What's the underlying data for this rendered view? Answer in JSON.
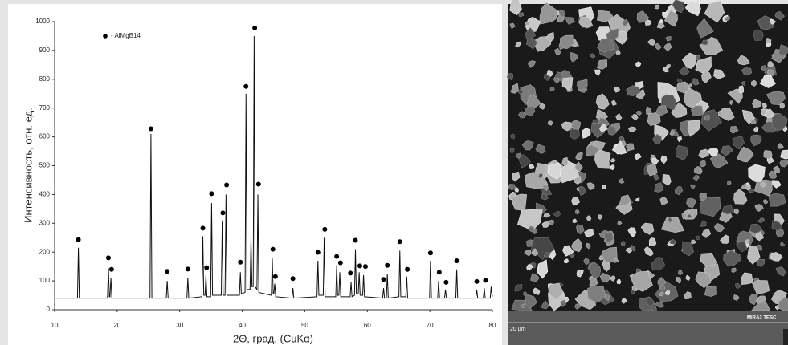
{
  "chart_data": {
    "type": "line",
    "x_label": "2Θ, град. (CuKα)",
    "y_label": "Интенсивность, отн. ед.",
    "xlim": [
      10,
      80
    ],
    "xticks": [
      10,
      20,
      30,
      40,
      50,
      60,
      70,
      80
    ],
    "ylim": [
      0,
      1000
    ],
    "yticks": [
      0,
      100,
      200,
      300,
      400,
      500,
      600,
      700,
      800,
      900,
      1000
    ],
    "series": [
      {
        "color": "#111111",
        "x": [
          10,
          13.65,
          13.8,
          13.95,
          18.45,
          18.6,
          18.75,
          18.85,
          19.0,
          19.15,
          25.25,
          25.4,
          25.55,
          27.85,
          28.0,
          28.15,
          31.15,
          31.3,
          31.45,
          33.55,
          33.7,
          33.85,
          34.05,
          34.2,
          34.35,
          34.95,
          35.1,
          35.25,
          36.65,
          36.8,
          36.95,
          37.25,
          37.4,
          37.55,
          39.55,
          39.7,
          39.85,
          40.45,
          40.6,
          40.75,
          41.25,
          41.4,
          41.55,
          41.75,
          41.9,
          42.05,
          42.35,
          42.5,
          42.65,
          44.65,
          44.8,
          44.95,
          45.05,
          45.2,
          45.35,
          47.95,
          48.1,
          48.25,
          51.95,
          52.1,
          52.25,
          52.95,
          53.1,
          53.25,
          54.95,
          55.1,
          55.25,
          55.45,
          55.6,
          55.75,
          57.25,
          57.4,
          57.55,
          57.95,
          58.1,
          58.25,
          58.55,
          58.7,
          58.85,
          59.25,
          59.4,
          59.55,
          62.45,
          62.6,
          62.75,
          63.05,
          63.2,
          63.35,
          65.05,
          65.2,
          65.35,
          66.15,
          66.3,
          66.45,
          69.95,
          70.1,
          70.25,
          71.25,
          71.4,
          71.55,
          72.35,
          72.5,
          72.65,
          74.15,
          74.3,
          74.45,
          77.35,
          77.5,
          77.65,
          78.55,
          78.7,
          78.85,
          79.65,
          79.8,
          79.95,
          80
        ],
        "values": [
          40,
          40,
          215,
          40,
          40,
          145,
          45,
          45,
          110,
          40,
          40,
          610,
          40,
          40,
          100,
          40,
          40,
          110,
          40,
          45,
          255,
          50,
          50,
          120,
          45,
          45,
          370,
          50,
          50,
          310,
          50,
          50,
          400,
          50,
          50,
          130,
          55,
          60,
          750,
          70,
          70,
          250,
          80,
          80,
          950,
          80,
          70,
          400,
          60,
          50,
          180,
          55,
          55,
          90,
          45,
          40,
          75,
          40,
          45,
          170,
          50,
          50,
          250,
          45,
          45,
          155,
          50,
          50,
          130,
          45,
          45,
          95,
          45,
          50,
          210,
          55,
          55,
          130,
          50,
          50,
          120,
          45,
          40,
          75,
          40,
          40,
          125,
          40,
          45,
          205,
          45,
          45,
          115,
          40,
          40,
          170,
          40,
          40,
          100,
          40,
          40,
          70,
          40,
          40,
          140,
          40,
          40,
          70,
          40,
          40,
          75,
          40,
          40,
          80,
          45,
          50
        ]
      },
      {
        "name": "- AlMgB14",
        "color": "#000000",
        "marker": "dot",
        "x": [
          13.8,
          18.6,
          19.1,
          25.4,
          28,
          31.3,
          33.7,
          34.3,
          35.1,
          36.9,
          37.5,
          39.7,
          40.6,
          42,
          42.6,
          44.9,
          45.3,
          48.1,
          52.1,
          53.2,
          55.1,
          55.7,
          57.3,
          58.1,
          58.8,
          59.7,
          62.6,
          63.2,
          65.2,
          66.4,
          70.1,
          71.5,
          72.6,
          74.3,
          77.5,
          78.9
        ],
        "values": [
          243,
          180,
          140,
          628,
          133,
          141,
          283,
          146,
          403,
          336,
          433,
          165,
          775,
          978,
          436,
          210,
          115,
          108,
          199,
          279,
          185,
          163,
          127,
          241,
          152,
          150,
          105,
          154,
          236,
          140,
          197,
          130,
          95,
          170,
          98,
          102
        ]
      }
    ]
  },
  "image": {
    "scale_label": "20 µm",
    "brand": "MIRA3 TESC"
  }
}
